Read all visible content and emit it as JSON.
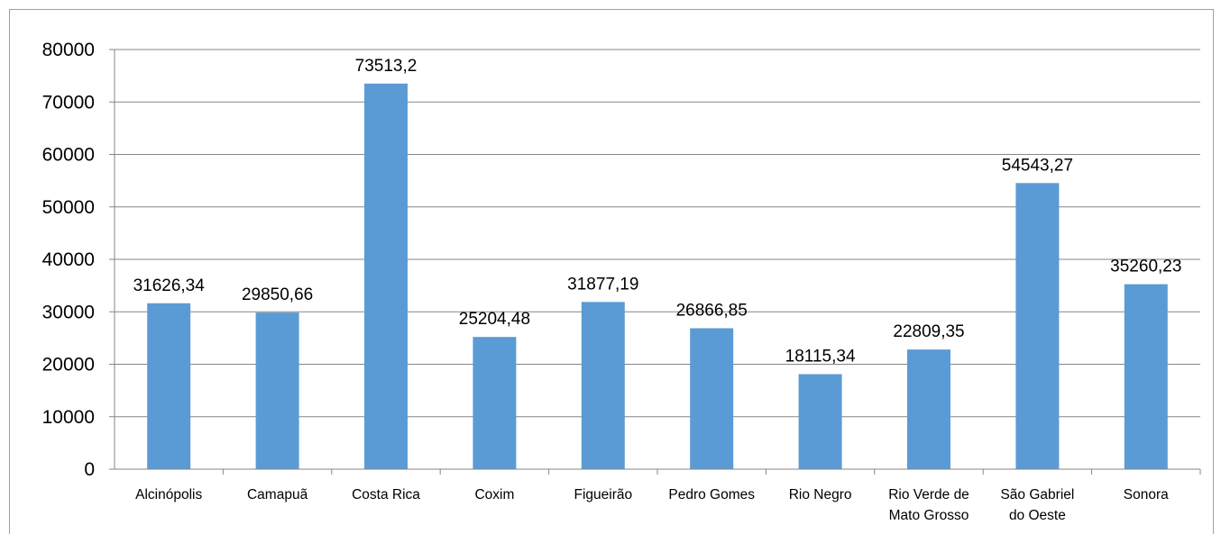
{
  "chart_data": {
    "type": "bar",
    "title": "",
    "xlabel": "",
    "ylabel": "",
    "categories": [
      [
        "Alcinópolis"
      ],
      [
        "Camapuã"
      ],
      [
        "Costa Rica"
      ],
      [
        "Coxim"
      ],
      [
        "Figueirão"
      ],
      [
        "Pedro Gomes"
      ],
      [
        "Rio Negro"
      ],
      [
        "Rio Verde de",
        "Mato Grosso"
      ],
      [
        "São Gabriel",
        "do Oeste"
      ],
      [
        "Sonora"
      ]
    ],
    "values": [
      31626.34,
      29850.66,
      73513.2,
      25204.48,
      31877.19,
      26866.85,
      18115.34,
      22809.35,
      54543.27,
      35260.23
    ],
    "data_labels": [
      "31626,34",
      "29850,66",
      "73513,2",
      "25204,48",
      "31877,19",
      "26866,85",
      "18115,34",
      "22809,35",
      "54543,27",
      "35260,23"
    ],
    "ylim": [
      0,
      80000
    ],
    "yticks": [
      0,
      10000,
      20000,
      30000,
      40000,
      50000,
      60000,
      70000,
      80000
    ],
    "grid": true,
    "legend": "none",
    "bar_color": "#5b9bd5",
    "grid_color": "#868686"
  }
}
